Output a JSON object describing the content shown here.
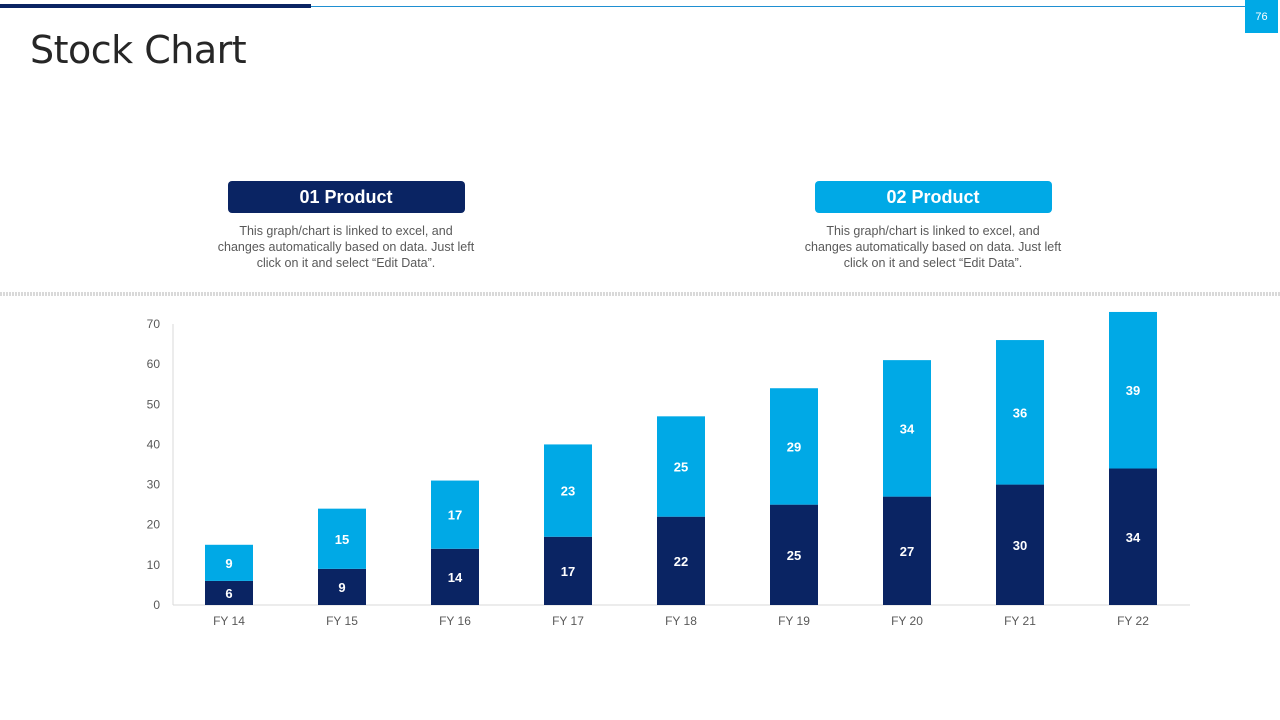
{
  "slide": {
    "title": "Stock Chart",
    "page_number": "76"
  },
  "legend": [
    {
      "label": "01 Product",
      "description": "This graph/chart is linked to excel, and changes automatically based on data. Just left click on it and select “Edit Data”."
    },
    {
      "label": "02 Product",
      "description": "This graph/chart is linked to excel, and changes automatically based on data. Just left click on it and select “Edit Data”."
    }
  ],
  "colors": {
    "product_01": "#0a2463",
    "product_02": "#00a9e6",
    "axis": "#d9d9d9"
  },
  "chart_data": {
    "type": "bar",
    "stacked": true,
    "categories": [
      "FY 14",
      "FY 15",
      "FY 16",
      "FY 17",
      "FY 18",
      "FY 19",
      "FY 20",
      "FY 21",
      "FY 22"
    ],
    "series": [
      {
        "name": "01 Product",
        "values": [
          6,
          9,
          14,
          17,
          22,
          25,
          27,
          30,
          34
        ]
      },
      {
        "name": "02 Product",
        "values": [
          9,
          15,
          17,
          23,
          25,
          29,
          34,
          36,
          39
        ]
      }
    ],
    "yticks": [
      0,
      10,
      20,
      30,
      40,
      50,
      60,
      70
    ],
    "ylim": [
      0,
      70
    ],
    "title": "",
    "xlabel": "",
    "ylabel": "",
    "grid": false,
    "data_labels": true
  }
}
